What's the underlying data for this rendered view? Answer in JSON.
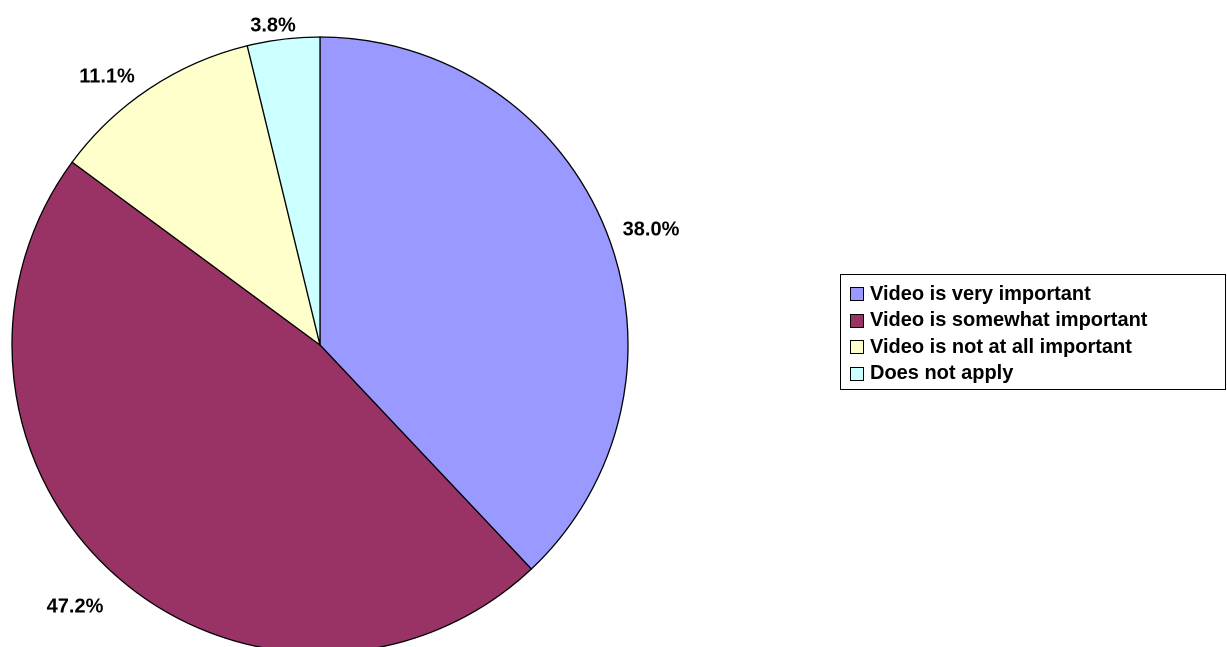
{
  "chart_data": {
    "type": "pie",
    "title": "",
    "legend_position": "right",
    "start_angle_deg": 0,
    "direction": "clockwise",
    "slices": [
      {
        "name": "Video is very important",
        "value": 38.0,
        "label": "38.0%",
        "color": "#9999FF"
      },
      {
        "name": "Video is somewhat important",
        "value": 47.2,
        "label": "47.2%",
        "color": "#993366"
      },
      {
        "name": "Video is not at all important",
        "value": 11.1,
        "label": "11.1%",
        "color": "#FFFFCC"
      },
      {
        "name": "Does not apply",
        "value": 3.8,
        "label": "3.8%",
        "color": "#CCFFFF"
      }
    ]
  }
}
